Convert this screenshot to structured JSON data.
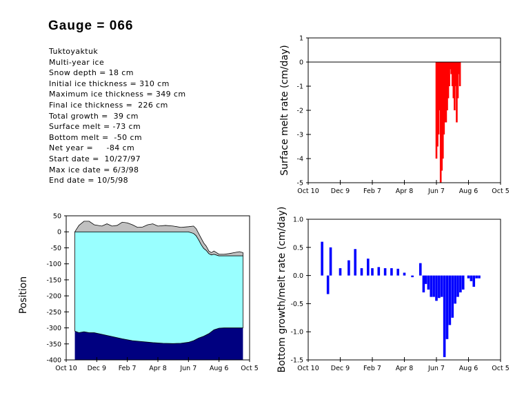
{
  "header": {
    "title": "Gauge = 066"
  },
  "info_lines": [
    "Tuktoyaktuk",
    "Multi-year ice",
    "Snow depth = 18 cm",
    "Initial ice thickness = 310 cm",
    "Maximum ice thickness = 349 cm",
    "Final ice thickness =  226 cm",
    "Total growth =  39 cm",
    "Surface melt = -73 cm",
    "Bottom melt =  -50 cm",
    "Net year =     -84 cm",
    "Start date =  10/27/97",
    "Max ice date = 6/3/98",
    "End date = 10/5/98"
  ],
  "colors": {
    "surface_melt": "#ff0000",
    "bottom_growth": "#0000ff",
    "ice": "#99ffff",
    "water_below": "#000080",
    "snow": "#c0c0c0"
  },
  "chart_data": [
    {
      "id": "surface_melt",
      "type": "bar",
      "title": "",
      "xlabel": "",
      "ylabel": "Surface melt rate (cm/day)",
      "x_tick_labels": [
        "Oct 10",
        "Dec 9",
        "Feb 7",
        "Apr 8",
        "Jun 7",
        "Aug 6",
        "Oct 5"
      ],
      "xlim": [
        0,
        360
      ],
      "ylim": [
        -5,
        1
      ],
      "y_ticks": [
        1,
        0,
        -1,
        -2,
        -3,
        -4,
        -5
      ],
      "y_tick_labels": [
        "1",
        "0",
        "-1",
        "-2",
        "-3",
        "-4",
        "-5"
      ],
      "zero_line": true,
      "x": [
        240,
        242,
        244,
        246,
        248,
        250,
        252,
        254,
        256,
        258,
        260,
        262,
        264,
        266,
        268,
        270,
        272,
        274,
        276,
        278,
        280,
        282,
        284
      ],
      "values": [
        -4.0,
        -3.5,
        -3.0,
        -2.0,
        -5.0,
        -4.5,
        -4.0,
        -3.0,
        -2.5,
        -2.5,
        -2.0,
        -1.5,
        -1.0,
        -0.3,
        -0.5,
        -1.0,
        -1.5,
        -2.0,
        -1.0,
        -2.5,
        -1.5,
        -0.5,
        -1.0
      ]
    },
    {
      "id": "ice_position",
      "type": "area",
      "title": "",
      "xlabel": "",
      "ylabel": "Position",
      "x_tick_labels": [
        "Oct 10",
        "Dec 9",
        "Feb 7",
        "Apr 8",
        "Jun 7",
        "Aug 6",
        "Oct 5"
      ],
      "xlim": [
        0,
        360
      ],
      "ylim": [
        -400,
        50
      ],
      "y_ticks": [
        50,
        0,
        -50,
        -100,
        -150,
        -200,
        -250,
        -300,
        -350,
        -400
      ],
      "y_tick_labels": [
        "50",
        "0",
        "-50",
        "-100",
        "-150",
        "-200",
        "-250",
        "-300",
        "-350",
        "-400"
      ],
      "series": [
        {
          "id": "snow_surface",
          "x": [
            17,
            25,
            35,
            45,
            55,
            70,
            80,
            90,
            100,
            110,
            120,
            130,
            140,
            150,
            160,
            170,
            180,
            195,
            210,
            225,
            240,
            250,
            255,
            260,
            265,
            270,
            275,
            280,
            285,
            290,
            300,
            310,
            320,
            330,
            340,
            347
          ],
          "values": [
            0,
            20,
            33,
            33,
            22,
            18,
            25,
            18,
            20,
            30,
            28,
            22,
            14,
            15,
            22,
            25,
            18,
            20,
            18,
            14,
            16,
            18,
            10,
            -5,
            -20,
            -35,
            -45,
            -60,
            -65,
            -60,
            -70,
            -70,
            -68,
            -65,
            -62,
            -65
          ]
        },
        {
          "id": "ice_top",
          "x": [
            17,
            240,
            250,
            255,
            260,
            265,
            270,
            275,
            280,
            285,
            290,
            300,
            310,
            320,
            330,
            340,
            347
          ],
          "values": [
            0,
            0,
            -5,
            -12,
            -25,
            -40,
            -52,
            -58,
            -68,
            -72,
            -70,
            -75,
            -75,
            -75,
            -75,
            -75,
            -75
          ]
        },
        {
          "id": "ice_bottom",
          "x": [
            17,
            25,
            35,
            45,
            55,
            70,
            90,
            110,
            130,
            150,
            170,
            190,
            210,
            225,
            240,
            250,
            260,
            270,
            280,
            290,
            300,
            310,
            320,
            330,
            340,
            347
          ],
          "values": [
            -310,
            -315,
            -312,
            -315,
            -315,
            -320,
            -327,
            -334,
            -340,
            -343,
            -346,
            -348,
            -349,
            -348,
            -345,
            -340,
            -332,
            -326,
            -318,
            -306,
            -301,
            -300,
            -300,
            -300,
            -300,
            -300
          ]
        }
      ]
    },
    {
      "id": "bottom_growth",
      "type": "bar",
      "title": "",
      "xlabel": "",
      "ylabel": "Bottom growth/melt rate (cm/day)",
      "x_tick_labels": [
        "Oct 10",
        "Dec 9",
        "Feb 7",
        "Apr 8",
        "Jun 7",
        "Aug 6",
        "Oct 5"
      ],
      "xlim": [
        0,
        360
      ],
      "ylim": [
        -1.5,
        1.0
      ],
      "y_ticks": [
        1.0,
        0.5,
        0.0,
        -0.5,
        -1.0,
        -1.5
      ],
      "y_tick_labels": [
        "1.0",
        "0.5",
        "0.0",
        "-0.5",
        "-1.0",
        "-1.5"
      ],
      "x": [
        26,
        37,
        42,
        60,
        76,
        88,
        100,
        112,
        120,
        132,
        144,
        156,
        168,
        180,
        195,
        210,
        216,
        220,
        225,
        230,
        235,
        240,
        245,
        250,
        255,
        260,
        265,
        270,
        275,
        280,
        285,
        290,
        300,
        305,
        310,
        315,
        320
      ],
      "values": [
        0.6,
        -0.33,
        0.5,
        0.13,
        0.27,
        0.47,
        0.13,
        0.3,
        0.13,
        0.15,
        0.13,
        0.13,
        0.12,
        0.05,
        -0.03,
        0.22,
        -0.3,
        -0.15,
        -0.25,
        -0.38,
        -0.38,
        -0.45,
        -0.4,
        -0.38,
        -1.45,
        -1.13,
        -0.88,
        -0.75,
        -0.5,
        -0.38,
        -0.3,
        -0.25,
        -0.05,
        -0.1,
        -0.2,
        -0.05,
        -0.05
      ]
    }
  ]
}
